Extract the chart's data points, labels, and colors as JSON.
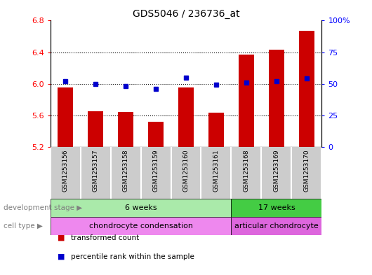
{
  "title": "GDS5046 / 236736_at",
  "samples": [
    "GSM1253156",
    "GSM1253157",
    "GSM1253158",
    "GSM1253159",
    "GSM1253160",
    "GSM1253161",
    "GSM1253168",
    "GSM1253169",
    "GSM1253170"
  ],
  "bar_values": [
    5.95,
    5.65,
    5.64,
    5.52,
    5.95,
    5.63,
    6.37,
    6.43,
    6.67
  ],
  "dot_values": [
    52,
    50,
    48,
    46,
    55,
    49,
    51,
    52,
    54
  ],
  "ylim_left": [
    5.2,
    6.8
  ],
  "ylim_right": [
    0,
    100
  ],
  "yticks_left": [
    5.2,
    5.6,
    6.0,
    6.4,
    6.8
  ],
  "yticks_right": [
    0,
    25,
    50,
    75,
    100
  ],
  "ytick_labels_right": [
    "0",
    "25",
    "50",
    "75",
    "100%"
  ],
  "bar_color": "#cc0000",
  "dot_color": "#0000cc",
  "bar_bottom": 5.2,
  "dev_stage_label": "development stage",
  "cell_type_label": "cell type",
  "dev_stage_groups": [
    {
      "label": "6 weeks",
      "start": 0,
      "end": 6,
      "color": "#aaeaaa"
    },
    {
      "label": "17 weeks",
      "start": 6,
      "end": 9,
      "color": "#44cc44"
    }
  ],
  "cell_type_groups": [
    {
      "label": "chondrocyte condensation",
      "start": 0,
      "end": 6,
      "color": "#ee88ee"
    },
    {
      "label": "articular chondrocyte",
      "start": 6,
      "end": 9,
      "color": "#dd66dd"
    }
  ],
  "legend_items": [
    {
      "label": "transformed count",
      "color": "#cc0000"
    },
    {
      "label": "percentile rank within the sample",
      "color": "#0000cc"
    }
  ],
  "sample_bg_color": "#cccccc",
  "dotted_line_values": [
    5.6,
    6.0,
    6.4
  ]
}
